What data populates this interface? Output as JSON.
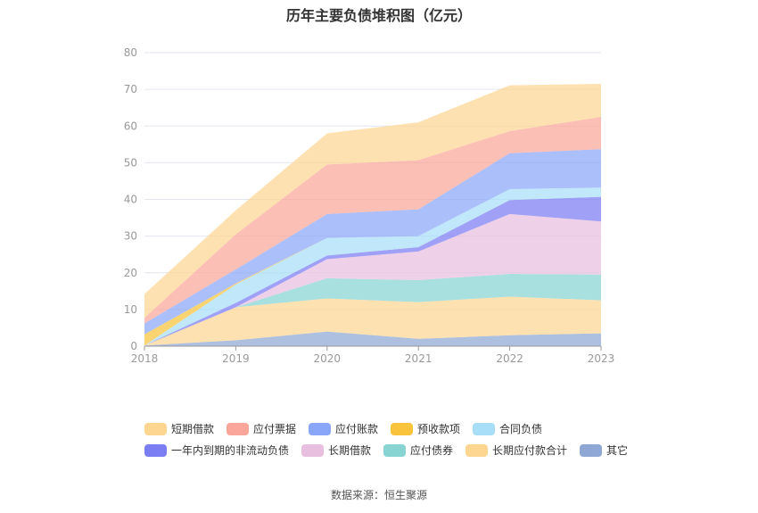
{
  "chart_data": {
    "type": "area",
    "stacked": true,
    "title": "历年主要负债堆积图（亿元）",
    "categories": [
      "2018",
      "2019",
      "2020",
      "2021",
      "2022",
      "2023"
    ],
    "ylim": [
      0,
      80
    ],
    "yticks": [
      0,
      10,
      20,
      30,
      40,
      50,
      60,
      70,
      80
    ],
    "grid": true,
    "legend_position": "bottom",
    "series": [
      {
        "name": "其它",
        "color": "#8fa7d4",
        "values": [
          0.2,
          1.6,
          4.0,
          2.0,
          3.0,
          3.5
        ]
      },
      {
        "name": "长期应付款合计",
        "color": "#fdd692",
        "values": [
          0,
          9.0,
          9.0,
          10.0,
          10.5,
          9.0
        ]
      },
      {
        "name": "应付债券",
        "color": "#87d4d2",
        "values": [
          0,
          0,
          5.5,
          6.0,
          6.2,
          7.0
        ]
      },
      {
        "name": "长期借款",
        "color": "#e8bfdf",
        "values": [
          0,
          0,
          5.2,
          7.8,
          16.3,
          14.5
        ]
      },
      {
        "name": "一年内到期的非流动负债",
        "color": "#7b7df2",
        "values": [
          0,
          1.2,
          1.0,
          1.2,
          3.8,
          6.7
        ]
      },
      {
        "name": "合同负债",
        "color": "#a8def8",
        "values": [
          0,
          5.0,
          4.8,
          3.0,
          3.0,
          2.5
        ]
      },
      {
        "name": "预收款项",
        "color": "#f9c43c",
        "values": [
          3.0,
          0.3,
          0,
          0,
          0,
          0
        ]
      },
      {
        "name": "应付账款",
        "color": "#8aa6f8",
        "values": [
          3.0,
          3.8,
          6.5,
          7.3,
          9.8,
          10.5
        ]
      },
      {
        "name": "应付票据",
        "color": "#fba69a",
        "values": [
          1.5,
          9.6,
          13.5,
          13.4,
          6.0,
          8.8
        ]
      },
      {
        "name": "短期借款",
        "color": "#fdd692",
        "values": [
          6.5,
          6.5,
          8.5,
          10.3,
          12.5,
          9.0
        ]
      }
    ],
    "legend_order": [
      "短期借款",
      "应付票据",
      "应付账款",
      "预收款项",
      "合同负债",
      "一年内到期的非流动负债",
      "长期借款",
      "应付债券",
      "长期应付款合计",
      "其它"
    ]
  },
  "source_text": "数据来源：恒生聚源"
}
